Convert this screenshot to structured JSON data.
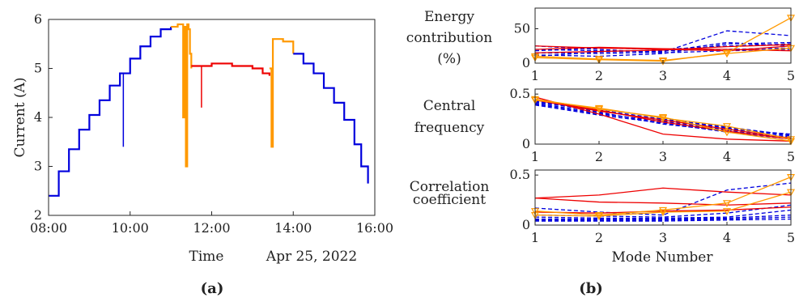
{
  "colors": {
    "night": "#0000dd",
    "dawn": "#ff9900",
    "noon": "#ee0000",
    "axis": "#262626"
  },
  "panel_labels": [
    "(a)",
    "(b)"
  ],
  "chart_data": [
    {
      "type": "line",
      "panel": "(a)",
      "xlabel": "Time",
      "xlabel_note": "Apr 25, 2022",
      "ylabel": "Current (A)",
      "xlim": [
        "08:00",
        "16:00"
      ],
      "ylim": [
        2,
        6
      ],
      "x_ticks": [
        "08:00",
        "10:00",
        "12:00",
        "14:00",
        "16:00"
      ],
      "y_ticks": [
        2,
        3,
        4,
        5,
        6
      ],
      "grid": false,
      "series": [
        {
          "color": "blue",
          "segment": "morning",
          "x": [
            "08:00",
            "08:15",
            "08:30",
            "08:45",
            "09:00",
            "09:15",
            "09:30",
            "09:45",
            "10:00",
            "10:15",
            "10:30",
            "10:45",
            "11:00"
          ],
          "y": [
            2.4,
            2.9,
            3.35,
            3.75,
            4.05,
            4.35,
            4.65,
            4.9,
            5.2,
            5.45,
            5.65,
            5.8,
            5.85
          ],
          "dips": [
            {
              "x": "09:50",
              "y": 3.4
            }
          ]
        },
        {
          "color": "orange",
          "segment": "late-morning",
          "x": [
            "11:00",
            "11:10",
            "11:15",
            "11:18",
            "11:20",
            "11:22",
            "11:24",
            "11:26",
            "11:28",
            "11:30"
          ],
          "y": [
            5.85,
            5.9,
            5.9,
            4.0,
            5.85,
            3.0,
            5.9,
            5.8,
            5.3,
            5.0
          ]
        },
        {
          "color": "red",
          "segment": "midday",
          "x": [
            "11:30",
            "11:45",
            "12:00",
            "12:15",
            "12:30",
            "12:45",
            "13:00",
            "13:15",
            "13:25"
          ],
          "y": [
            5.05,
            5.05,
            5.1,
            5.1,
            5.05,
            5.05,
            5.0,
            4.9,
            4.85
          ],
          "dips": [
            {
              "x": "11:45",
              "y": 4.2
            }
          ]
        },
        {
          "color": "orange",
          "segment": "early-afternoon",
          "x": [
            "13:25",
            "13:28",
            "13:30",
            "13:32",
            "13:45",
            "14:00"
          ],
          "y": [
            5.0,
            3.4,
            5.6,
            5.6,
            5.55,
            5.3
          ]
        },
        {
          "color": "blue",
          "segment": "afternoon",
          "x": [
            "14:00",
            "14:15",
            "14:30",
            "14:45",
            "15:00",
            "15:15",
            "15:30",
            "15:40",
            "15:50"
          ],
          "y": [
            5.3,
            5.1,
            4.9,
            4.6,
            4.3,
            3.95,
            3.45,
            3.0,
            2.65
          ]
        }
      ]
    },
    {
      "type": "line",
      "panel": "(b)",
      "subplots": [
        {
          "ylabel": "Energy contribution (%)",
          "ylabel_lines": [
            "Energy",
            "contribution",
            "(%)"
          ],
          "ylim": [
            0,
            80
          ],
          "y_ticks": [
            0,
            50
          ]
        },
        {
          "ylabel": "Central frequency",
          "ylabel_lines": [
            "Central",
            "frequency"
          ],
          "ylim": [
            0,
            0.55
          ],
          "y_ticks": [
            0,
            0.5
          ]
        },
        {
          "ylabel": "Correlation coefficient",
          "ylabel_lines": [
            "Correlation",
            "coefficient"
          ],
          "ylim": [
            0,
            0.55
          ],
          "y_ticks": [
            0,
            0.5
          ]
        }
      ],
      "xlabel": "Mode Number",
      "x": [
        1,
        2,
        3,
        4,
        5
      ],
      "x_ticks": [
        1,
        2,
        3,
        4,
        5
      ],
      "series": [
        {
          "color": "blue",
          "style": "dashed",
          "energy": [
            15,
            14,
            16,
            47,
            40
          ],
          "freq": [
            0.44,
            0.34,
            0.25,
            0.17,
            0.09
          ],
          "corr": [
            0.17,
            0.13,
            0.1,
            0.35,
            0.42
          ]
        },
        {
          "color": "blue",
          "style": "dashed",
          "energy": [
            20,
            18,
            17,
            30,
            25
          ],
          "freq": [
            0.42,
            0.33,
            0.24,
            0.16,
            0.08
          ],
          "corr": [
            0.1,
            0.09,
            0.08,
            0.12,
            0.2
          ]
        },
        {
          "color": "blue",
          "style": "dashed",
          "energy": [
            10,
            16,
            18,
            20,
            22
          ],
          "freq": [
            0.41,
            0.31,
            0.22,
            0.14,
            0.07
          ],
          "corr": [
            0.06,
            0.06,
            0.06,
            0.07,
            0.1
          ]
        },
        {
          "color": "blue",
          "style": "dashed",
          "energy": [
            25,
            20,
            15,
            18,
            20
          ],
          "freq": [
            0.43,
            0.32,
            0.2,
            0.13,
            0.06
          ],
          "corr": [
            0.05,
            0.05,
            0.05,
            0.06,
            0.08
          ]
        },
        {
          "color": "blue",
          "style": "dashed",
          "energy": [
            18,
            22,
            20,
            25,
            28
          ],
          "freq": [
            0.4,
            0.3,
            0.23,
            0.15,
            0.1
          ],
          "corr": [
            0.08,
            0.07,
            0.07,
            0.08,
            0.15
          ]
        },
        {
          "color": "blue",
          "style": "dashed",
          "energy": [
            12,
            10,
            14,
            28,
            30
          ],
          "freq": [
            0.39,
            0.29,
            0.21,
            0.12,
            0.05
          ],
          "corr": [
            0.04,
            0.04,
            0.04,
            0.05,
            0.06
          ]
        },
        {
          "color": "red",
          "style": "solid",
          "energy": [
            25,
            22,
            20,
            18,
            25
          ],
          "freq": [
            0.47,
            0.3,
            0.1,
            0.05,
            0.03
          ],
          "corr": [
            0.27,
            0.3,
            0.37,
            0.33,
            0.3
          ]
        },
        {
          "color": "red",
          "style": "solid",
          "energy": [
            20,
            23,
            21,
            20,
            18
          ],
          "freq": [
            0.45,
            0.34,
            0.22,
            0.13,
            0.05
          ],
          "corr": [
            0.27,
            0.23,
            0.22,
            0.2,
            0.22
          ]
        },
        {
          "color": "red",
          "style": "solid",
          "energy": [
            15,
            17,
            19,
            24,
            27
          ],
          "freq": [
            0.44,
            0.33,
            0.24,
            0.15,
            0.06
          ],
          "corr": [
            0.13,
            0.12,
            0.14,
            0.15,
            0.18
          ]
        },
        {
          "color": "orange",
          "style": "solid-marker",
          "energy": [
            8,
            5,
            3,
            15,
            66
          ],
          "freq": [
            0.45,
            0.35,
            0.27,
            0.12,
            0.03
          ],
          "corr": [
            0.14,
            0.1,
            0.15,
            0.22,
            0.48
          ]
        },
        {
          "color": "orange",
          "style": "solid-marker",
          "energy": [
            10,
            6,
            4,
            14,
            22
          ],
          "freq": [
            0.44,
            0.36,
            0.26,
            0.18,
            0.05
          ],
          "corr": [
            0.1,
            0.09,
            0.13,
            0.14,
            0.33
          ]
        }
      ]
    }
  ]
}
